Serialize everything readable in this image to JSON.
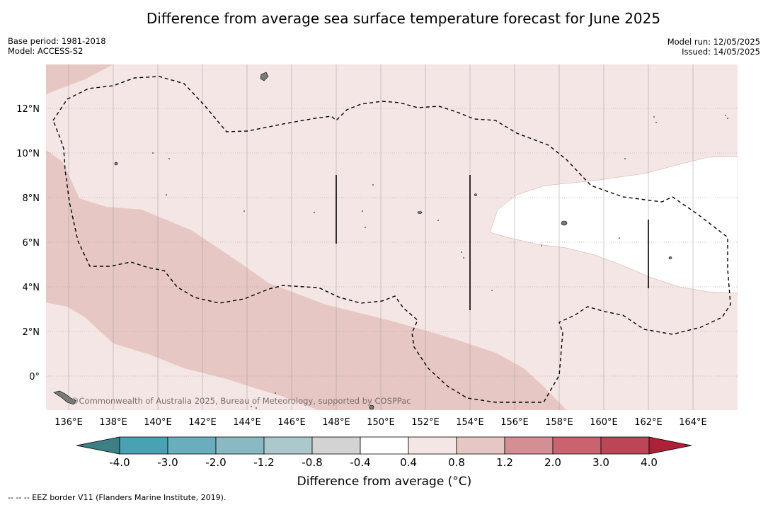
{
  "header": {
    "title": "Difference from average sea surface temperature forecast for June 2025",
    "base_period": "Base period: 1981-2018",
    "model": "Model: ACCESS-S2",
    "model_run": "Model run: 12/05/2025",
    "issued": "Issued: 14/05/2025"
  },
  "map": {
    "credit": "©Commonwealth of Australia 2025, Bureau of Meteorology, supported by COSPPac",
    "lon_labels": [
      "136°E",
      "138°E",
      "140°E",
      "142°E",
      "144°E",
      "146°E",
      "148°E",
      "150°E",
      "152°E",
      "154°E",
      "156°E",
      "158°E",
      "160°E",
      "162°E",
      "164°E"
    ],
    "lat_labels": [
      "12°N",
      "10°N",
      "8°N",
      "6°N",
      "4°N",
      "2°N",
      "0°"
    ],
    "colors": {
      "band_0_4_to_0_8": "#f4e6e4",
      "band_0_8_to_1_2": "#e6c7c3",
      "land": "#7a7a7a"
    }
  },
  "colorbar": {
    "label": "Difference from average (°C)",
    "tick_labels": [
      "-4.0",
      "-3.0",
      "-2.0",
      "-1.2",
      "-0.8",
      "-0.4",
      "0.4",
      "0.8",
      "1.2",
      "2.0",
      "3.0",
      "4.0"
    ],
    "colors": {
      "extend_low": "#3c7f84",
      "bins": [
        "#49a1b2",
        "#6aadbd",
        "#8ab9c4",
        "#abc9cd",
        "#d3d3d3",
        "#ffffff",
        "#f4e6e4",
        "#e6c7c3",
        "#d48f95",
        "#c9636d",
        "#bb4655"
      ],
      "extend_high": "#ad2036"
    }
  },
  "legend": {
    "eez": "--  --  -- EEZ border V11 (Flanders Marine Institute, 2019)."
  }
}
